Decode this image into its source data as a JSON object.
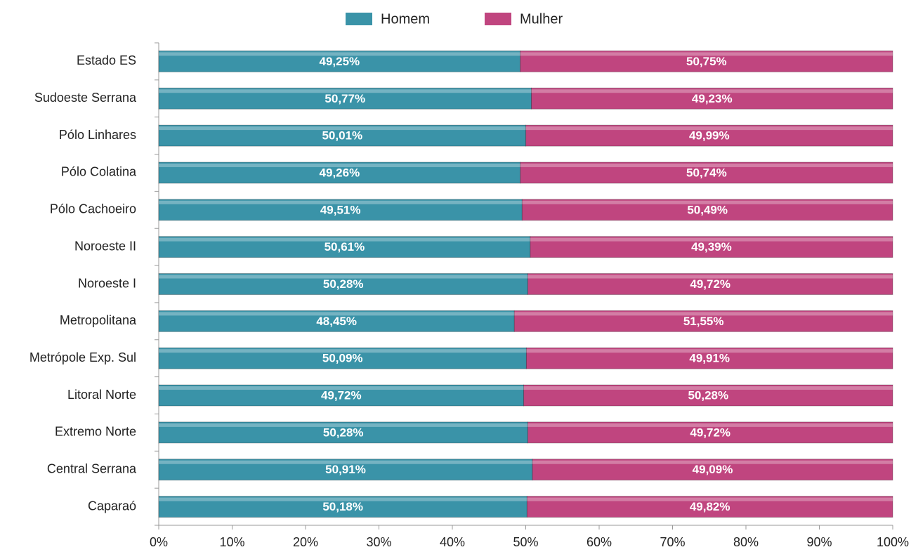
{
  "chart_data": {
    "type": "stacked_barh",
    "categories": [
      "Estado ES",
      "Sudoeste Serrana",
      "Pólo Linhares",
      "Pólo Colatina",
      "Pólo Cachoeiro",
      "Noroeste II",
      "Noroeste I",
      "Metropolitana",
      "Metrópole Exp. Sul",
      "Litoral Norte",
      "Extremo Norte",
      "Central Serrana",
      "Caparaó"
    ],
    "series": [
      {
        "name": "Homem",
        "color": "#3a93a8",
        "values": [
          49.25,
          50.77,
          50.01,
          49.26,
          49.51,
          50.61,
          50.28,
          48.45,
          50.09,
          49.72,
          50.28,
          50.91,
          50.18
        ],
        "value_labels": [
          "49,25%",
          "50,77%",
          "50,01%",
          "49,26%",
          "49,51%",
          "50,61%",
          "50,28%",
          "48,45%",
          "50,09%",
          "49,72%",
          "50,28%",
          "50,91%",
          "50,18%"
        ]
      },
      {
        "name": "Mulher",
        "color": "#c0457f",
        "values": [
          50.75,
          49.23,
          49.99,
          50.74,
          50.49,
          49.39,
          49.72,
          51.55,
          49.91,
          50.28,
          49.72,
          49.09,
          49.82
        ],
        "value_labels": [
          "50,75%",
          "49,23%",
          "49,99%",
          "50,74%",
          "50,49%",
          "49,39%",
          "49,72%",
          "51,55%",
          "49,91%",
          "50,28%",
          "49,72%",
          "49,09%",
          "49,82%"
        ]
      }
    ],
    "xlim": [
      0,
      100
    ],
    "xticks": [
      {
        "value": 0,
        "label": "0%"
      },
      {
        "value": 10,
        "label": "10%"
      },
      {
        "value": 20,
        "label": "20%"
      },
      {
        "value": 30,
        "label": "30%"
      },
      {
        "value": 40,
        "label": "40%"
      },
      {
        "value": 50,
        "label": "50%"
      },
      {
        "value": 60,
        "label": "60%"
      },
      {
        "value": 70,
        "label": "70%"
      },
      {
        "value": 80,
        "label": "80%"
      },
      {
        "value": 90,
        "label": "90%"
      },
      {
        "value": 100,
        "label": "100%"
      }
    ],
    "legend": "top"
  }
}
